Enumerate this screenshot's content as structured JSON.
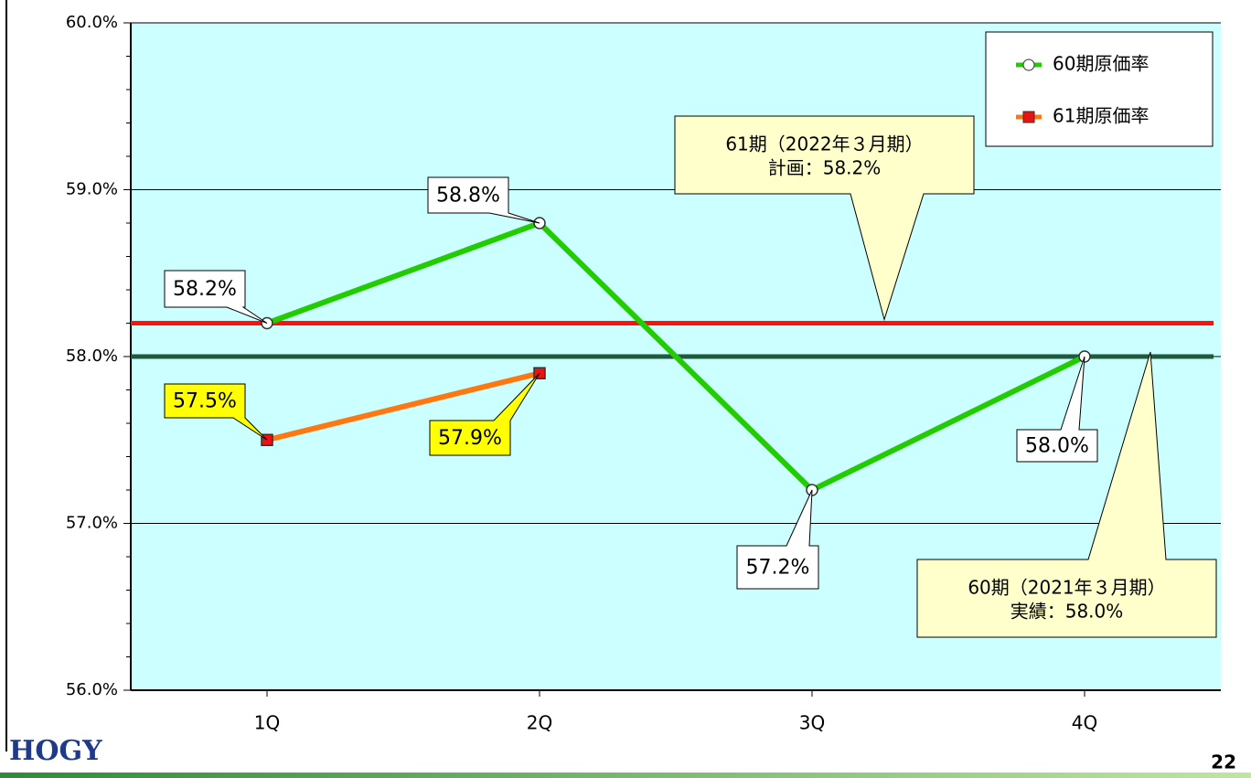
{
  "chart_data": {
    "type": "line",
    "categories": [
      "1Q",
      "2Q",
      "3Q",
      "4Q"
    ],
    "series": [
      {
        "name": "60期原価率",
        "color": "#22cc00",
        "marker": "circle",
        "marker_color": "#ffffff",
        "values": [
          58.2,
          58.8,
          57.2,
          58.0
        ],
        "value_labels": [
          "58.2%",
          "58.8%",
          "57.2%",
          "58.0%"
        ],
        "label_color": "#ffffff"
      },
      {
        "name": "61期原価率",
        "color": "#ff7711",
        "marker": "square",
        "marker_color": "#ee1111",
        "values": [
          57.5,
          57.9,
          null,
          null
        ],
        "value_labels": [
          "57.5%",
          "57.9%",
          null,
          null
        ],
        "label_color": "#ffff00"
      }
    ],
    "ylim": [
      56,
      60
    ],
    "yticks": [
      {
        "value": 56,
        "label": "56.0%"
      },
      {
        "value": 57,
        "label": "57.0%"
      },
      {
        "value": 58,
        "label": "58.0%"
      },
      {
        "value": 59,
        "label": "59.0%"
      },
      {
        "value": 60,
        "label": "60.0%"
      }
    ],
    "minor_yticks": [
      56.2,
      56.4,
      56.6,
      56.8,
      57.2,
      57.4,
      57.6,
      57.8,
      58.2,
      58.4,
      58.6,
      58.8,
      59.2,
      59.4,
      59.6,
      59.8
    ],
    "grid": true,
    "legend": "top-right",
    "reference_lines": [
      {
        "value": 58.2,
        "color": "#ff1111",
        "annotation": [
          "61期（2022年３月期）",
          "計画：58.2%"
        ]
      },
      {
        "value": 58.0,
        "color": "#1e5a3c",
        "annotation": [
          "60期（2021年３月期）",
          "実績：58.0%"
        ]
      }
    ]
  },
  "footer": {
    "logo": "HOGY",
    "page": "22"
  }
}
